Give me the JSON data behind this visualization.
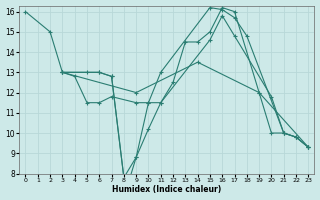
{
  "xlabel": "Humidex (Indice chaleur)",
  "xlim": [
    -0.5,
    23.5
  ],
  "ylim": [
    8,
    16.3
  ],
  "yticks": [
    8,
    9,
    10,
    11,
    12,
    13,
    14,
    15,
    16
  ],
  "xticks": [
    0,
    1,
    2,
    3,
    4,
    5,
    6,
    7,
    8,
    9,
    10,
    11,
    12,
    13,
    14,
    15,
    16,
    17,
    18,
    19,
    20,
    21,
    22,
    23
  ],
  "bg_color": "#cde9e8",
  "grid_color": "#b8d8d8",
  "line_color": "#2a7d72",
  "lines": [
    {
      "x": [
        0,
        2,
        3,
        5,
        6,
        7,
        8,
        9,
        10,
        11,
        15,
        16,
        17,
        18,
        21,
        22,
        23
      ],
      "y": [
        16,
        15,
        13,
        13,
        13,
        12.8,
        7.8,
        8.8,
        11.5,
        13,
        16.2,
        16.1,
        15.7,
        14.8,
        10,
        9.8,
        9.3
      ]
    },
    {
      "x": [
        3,
        4,
        5,
        6,
        7,
        9,
        10,
        11,
        12,
        13,
        14,
        15,
        16,
        17,
        19,
        20,
        21,
        22,
        23
      ],
      "y": [
        13,
        12.8,
        11.5,
        11.5,
        11.8,
        11.5,
        11.5,
        11.5,
        12.5,
        14.5,
        14.5,
        15,
        16.2,
        16,
        12,
        10,
        10,
        9.8,
        9.3
      ]
    },
    {
      "x": [
        3,
        9,
        14,
        19,
        23
      ],
      "y": [
        13,
        12.0,
        13.5,
        12,
        9.3
      ]
    },
    {
      "x": [
        3,
        6,
        7,
        8,
        8.5,
        9,
        10,
        11,
        15,
        16,
        17,
        20,
        21,
        22,
        23
      ],
      "y": [
        13,
        13,
        12.8,
        7.8,
        7.8,
        8.8,
        10.2,
        11.5,
        14.6,
        15.8,
        14.8,
        11.8,
        10,
        9.8,
        9.3
      ]
    }
  ]
}
